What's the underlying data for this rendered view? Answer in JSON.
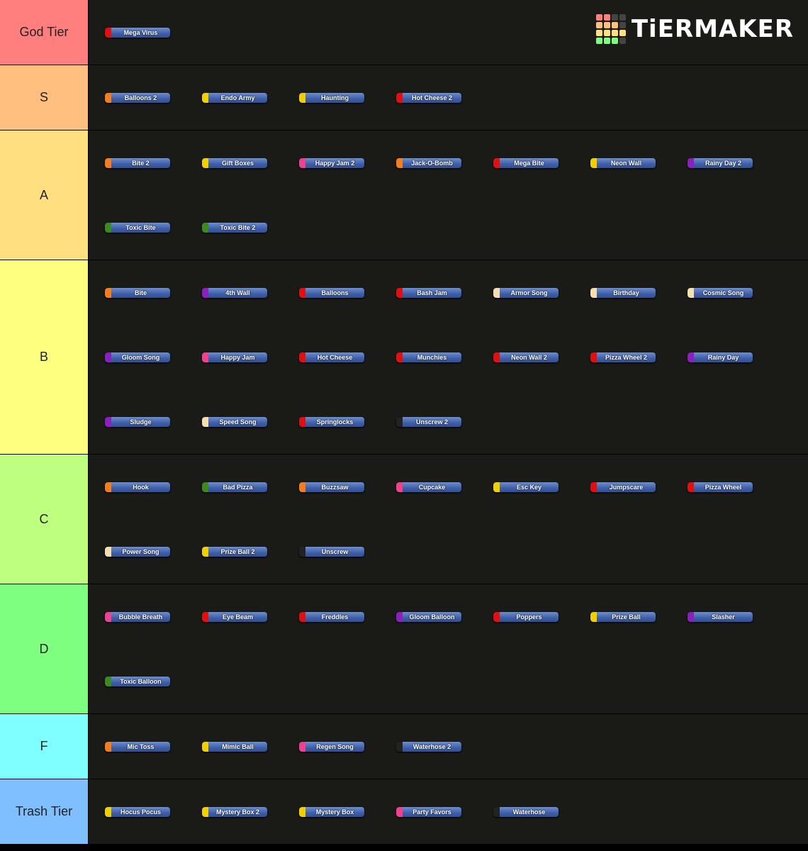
{
  "logo": "TiERMAKER",
  "tiers": [
    {
      "label": "God Tier",
      "color": "#ff7f7f",
      "items": [
        {
          "name": "Mega Virus",
          "tab": "#e01010"
        }
      ]
    },
    {
      "label": "S",
      "color": "#ffbf7f",
      "items": [
        {
          "name": "Balloons 2",
          "tab": "#f57c1f"
        },
        {
          "name": "Endo Army",
          "tab": "#f0d000"
        },
        {
          "name": "Haunting",
          "tab": "#f0d000"
        },
        {
          "name": "Hot Cheese 2",
          "tab": "#e01010"
        }
      ]
    },
    {
      "label": "A",
      "color": "#ffdf7f",
      "items": [
        {
          "name": "Bite 2",
          "tab": "#f57c1f"
        },
        {
          "name": "Gift Boxes",
          "tab": "#f0d000"
        },
        {
          "name": "Happy Jam 2",
          "tab": "#f04090"
        },
        {
          "name": "Jack-O-Bomb",
          "tab": "#f57c1f"
        },
        {
          "name": "Mega Bite",
          "tab": "#e01010"
        },
        {
          "name": "Neon Wall",
          "tab": "#f0d000"
        },
        {
          "name": "Rainy Day 2",
          "tab": "#8a20c0"
        },
        {
          "name": "Toxic Bite",
          "tab": "#3a8a20"
        },
        {
          "name": "Toxic Bite 2",
          "tab": "#3a8a20"
        }
      ]
    },
    {
      "label": "B",
      "color": "#ffff7f",
      "items": [
        {
          "name": "Bite",
          "tab": "#f57c1f"
        },
        {
          "name": "4th Wall",
          "tab": "#8a20c0"
        },
        {
          "name": "Balloons",
          "tab": "#e01010"
        },
        {
          "name": "Bash Jam",
          "tab": "#e01010"
        },
        {
          "name": "Armor Song",
          "tab": "#f5dfb0"
        },
        {
          "name": "Birthday",
          "tab": "#f5dfb0"
        },
        {
          "name": "Cosmic Song",
          "tab": "#f5dfb0"
        },
        {
          "name": "Gloom Song",
          "tab": "#8a20c0"
        },
        {
          "name": "Happy Jam",
          "tab": "#f04090"
        },
        {
          "name": "Hot Cheese",
          "tab": "#e01010"
        },
        {
          "name": "Munchies",
          "tab": "#e01010"
        },
        {
          "name": "Neon Wall 2",
          "tab": "#e01010"
        },
        {
          "name": "Pizza Wheel 2",
          "tab": "#e01010"
        },
        {
          "name": "Rainy Day",
          "tab": "#8a20c0"
        },
        {
          "name": "Sludge",
          "tab": "#8a20c0"
        },
        {
          "name": "Speed Song",
          "tab": "#f5dfb0"
        },
        {
          "name": "Springlocks",
          "tab": "#e01010"
        },
        {
          "name": "Unscrew 2",
          "tab": "#222222"
        }
      ]
    },
    {
      "label": "C",
      "color": "#bfff7f",
      "items": [
        {
          "name": "Hook",
          "tab": "#f57c1f"
        },
        {
          "name": "Bad Pizza",
          "tab": "#3a8a20"
        },
        {
          "name": "Buzzsaw",
          "tab": "#f57c1f"
        },
        {
          "name": "Cupcake",
          "tab": "#f04090"
        },
        {
          "name": "Esc Key",
          "tab": "#f0d000"
        },
        {
          "name": "Jumpscare",
          "tab": "#e01010"
        },
        {
          "name": "Pizza Wheel",
          "tab": "#e01010"
        },
        {
          "name": "Power Song",
          "tab": "#f5dfb0"
        },
        {
          "name": "Prize Ball 2",
          "tab": "#f0d000"
        },
        {
          "name": "Unscrew",
          "tab": "#222222"
        }
      ]
    },
    {
      "label": "D",
      "color": "#7fff7f",
      "items": [
        {
          "name": "Bubble Breath",
          "tab": "#f04090"
        },
        {
          "name": "Eye Beam",
          "tab": "#e01010"
        },
        {
          "name": "Freddles",
          "tab": "#e01010"
        },
        {
          "name": "Gloom Balloon",
          "tab": "#8a20c0"
        },
        {
          "name": "Poppers",
          "tab": "#e01010"
        },
        {
          "name": "Prize Ball",
          "tab": "#f0d000"
        },
        {
          "name": "Slasher",
          "tab": "#8a20c0"
        },
        {
          "name": "Toxic Balloon",
          "tab": "#3a8a20"
        }
      ]
    },
    {
      "label": "F",
      "color": "#7fffff",
      "items": [
        {
          "name": "Mic Toss",
          "tab": "#f57c1f"
        },
        {
          "name": "Mimic Ball",
          "tab": "#f0d000"
        },
        {
          "name": "Regen Song",
          "tab": "#f04090"
        },
        {
          "name": "Waterhose 2",
          "tab": "#222222"
        }
      ]
    },
    {
      "label": "Trash Tier",
      "color": "#7fbfff",
      "items": [
        {
          "name": "Hocus Pocus",
          "tab": "#f0d000"
        },
        {
          "name": "Mystery Box 2",
          "tab": "#f0d000"
        },
        {
          "name": "Mystery Box",
          "tab": "#f0d000"
        },
        {
          "name": "Party Favors",
          "tab": "#f04090"
        },
        {
          "name": "Waterhose",
          "tab": "#222222"
        }
      ]
    }
  ]
}
